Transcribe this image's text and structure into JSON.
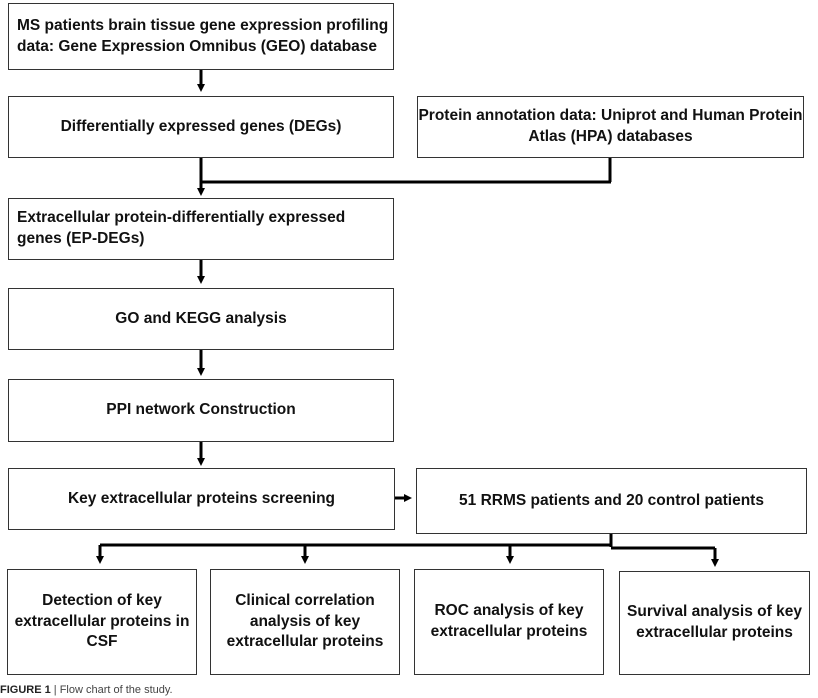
{
  "nodes": {
    "geo": "MS patients brain tissue gene expression profiling data: Gene Expression Omnibus (GEO) database",
    "degs": "Differentially expressed genes (DEGs)",
    "annotation": "Protein annotation data: Uniprot and Human Protein Atlas (HPA) databases",
    "epdegs": "Extracellular protein-differentially expressed genes (EP-DEGs)",
    "gokegg": "GO and KEGG analysis",
    "ppi": "PPI network Construction",
    "screening": "Key extracellular proteins screening",
    "patients": "51 RRMS patients and 20 control patients",
    "detection": "Detection of key extracellular proteins in CSF",
    "clinical": "Clinical correlation analysis of key extracellular proteins",
    "roc": "ROC analysis of key extracellular proteins",
    "survival": "Survival analysis of key extracellular proteins"
  },
  "caption": {
    "label": "FIGURE 1",
    "text": "| Flow chart of the study."
  }
}
